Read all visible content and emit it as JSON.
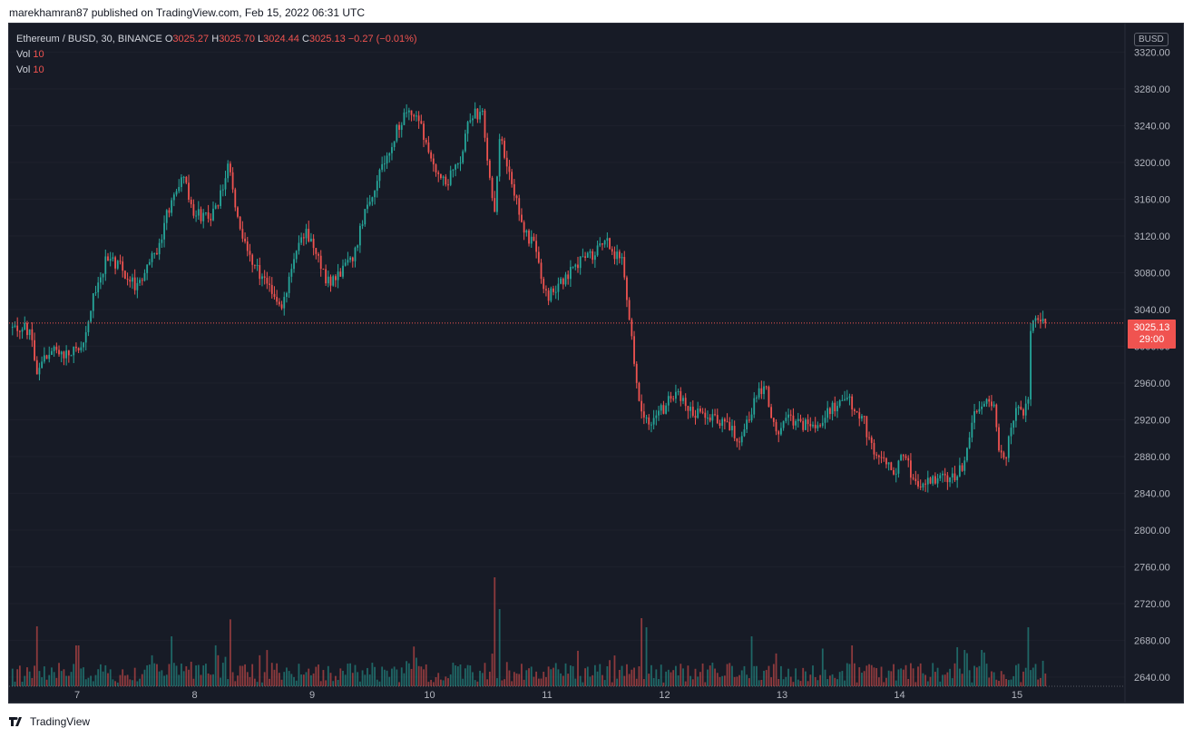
{
  "publish_line": "marekhamran87 published on TradingView.com, Feb 15, 2022 06:31 UTC",
  "legend": {
    "symbol": "Ethereum / BUSD, 30, BINANCE",
    "o_label": "O",
    "o": "3025.27",
    "h_label": "H",
    "h": "3025.70",
    "l_label": "L",
    "l": "3024.44",
    "c_label": "C",
    "c": "3025.13",
    "change": "−0.27 (−0.01%)",
    "vol1_label": "Vol",
    "vol1": "10",
    "vol2_label": "Vol",
    "vol2": "10"
  },
  "price_axis": {
    "currency": "BUSD",
    "current_price": "3025.13",
    "countdown": "29:00"
  },
  "footer": {
    "brand": "TradingView"
  },
  "colors": {
    "up": "#26a69a",
    "down": "#ef5350",
    "background": "#171b26",
    "grid": "#2a2e39",
    "axis_text": "#b2b5be"
  },
  "chart_data": {
    "type": "candlestick",
    "symbol": "Ethereum / BUSD",
    "interval": "30",
    "exchange": "BINANCE",
    "ylim": [
      2630,
      3345
    ],
    "y_ticks": [
      2640,
      2680,
      2720,
      2760,
      2800,
      2840,
      2880,
      2920,
      2960,
      3000,
      3040,
      3080,
      3120,
      3160,
      3200,
      3240,
      3280,
      3320
    ],
    "x_ticks": [
      "7",
      "8",
      "9",
      "10",
      "11",
      "12",
      "13",
      "14",
      "15"
    ],
    "last_price": 3025.13,
    "anchors_day_close": [
      [
        6.45,
        3020
      ],
      [
        6.6,
        3018
      ],
      [
        6.65,
        2975
      ],
      [
        6.8,
        2995
      ],
      [
        6.95,
        2990
      ],
      [
        7.05,
        3005
      ],
      [
        7.15,
        3060
      ],
      [
        7.25,
        3095
      ],
      [
        7.35,
        3090
      ],
      [
        7.5,
        3065
      ],
      [
        7.6,
        3085
      ],
      [
        7.7,
        3110
      ],
      [
        7.8,
        3160
      ],
      [
        7.9,
        3185
      ],
      [
        8.0,
        3145
      ],
      [
        8.1,
        3140
      ],
      [
        8.2,
        3150
      ],
      [
        8.28,
        3200
      ],
      [
        8.35,
        3150
      ],
      [
        8.45,
        3100
      ],
      [
        8.55,
        3080
      ],
      [
        8.65,
        3060
      ],
      [
        8.75,
        3045
      ],
      [
        8.85,
        3100
      ],
      [
        8.95,
        3125
      ],
      [
        9.05,
        3095
      ],
      [
        9.15,
        3065
      ],
      [
        9.25,
        3080
      ],
      [
        9.35,
        3095
      ],
      [
        9.45,
        3150
      ],
      [
        9.55,
        3180
      ],
      [
        9.65,
        3210
      ],
      [
        9.75,
        3245
      ],
      [
        9.85,
        3255
      ],
      [
        9.95,
        3230
      ],
      [
        10.05,
        3195
      ],
      [
        10.15,
        3180
      ],
      [
        10.25,
        3200
      ],
      [
        10.35,
        3250
      ],
      [
        10.45,
        3255
      ],
      [
        10.55,
        3135
      ],
      [
        10.6,
        3230
      ],
      [
        10.7,
        3180
      ],
      [
        10.8,
        3125
      ],
      [
        10.9,
        3110
      ],
      [
        11.0,
        3050
      ],
      [
        11.1,
        3070
      ],
      [
        11.2,
        3080
      ],
      [
        11.3,
        3095
      ],
      [
        11.4,
        3100
      ],
      [
        11.5,
        3120
      ],
      [
        11.55,
        3105
      ],
      [
        11.65,
        3090
      ],
      [
        11.75,
        2975
      ],
      [
        11.8,
        2930
      ],
      [
        11.9,
        2915
      ],
      [
        12.0,
        2935
      ],
      [
        12.1,
        2950
      ],
      [
        12.2,
        2935
      ],
      [
        12.3,
        2925
      ],
      [
        12.45,
        2920
      ],
      [
        12.55,
        2915
      ],
      [
        12.65,
        2895
      ],
      [
        12.75,
        2935
      ],
      [
        12.85,
        2960
      ],
      [
        12.95,
        2905
      ],
      [
        13.05,
        2920
      ],
      [
        13.15,
        2915
      ],
      [
        13.3,
        2915
      ],
      [
        13.45,
        2935
      ],
      [
        13.55,
        2945
      ],
      [
        13.7,
        2920
      ],
      [
        13.75,
        2890
      ],
      [
        13.85,
        2880
      ],
      [
        13.95,
        2860
      ],
      [
        14.05,
        2885
      ],
      [
        14.1,
        2860
      ],
      [
        14.2,
        2850
      ],
      [
        14.35,
        2860
      ],
      [
        14.45,
        2855
      ],
      [
        14.55,
        2870
      ],
      [
        14.65,
        2930
      ],
      [
        14.75,
        2950
      ],
      [
        14.8,
        2935
      ],
      [
        14.85,
        2885
      ],
      [
        14.9,
        2875
      ],
      [
        14.95,
        2910
      ],
      [
        15.0,
        2935
      ],
      [
        15.05,
        2925
      ],
      [
        15.1,
        2940
      ],
      [
        15.12,
        3025
      ],
      [
        15.15,
        3035
      ],
      [
        15.2,
        3030
      ],
      [
        15.25,
        3025.13
      ]
    ],
    "volume_spikes": [
      [
        6.65,
        60
      ],
      [
        7.0,
        45
      ],
      [
        7.8,
        55
      ],
      [
        8.3,
        50
      ],
      [
        10.55,
        120
      ],
      [
        10.6,
        85
      ],
      [
        11.8,
        75
      ],
      [
        11.85,
        65
      ],
      [
        12.75,
        55
      ],
      [
        13.6,
        45
      ],
      [
        14.7,
        40
      ],
      [
        15.1,
        65
      ]
    ]
  }
}
